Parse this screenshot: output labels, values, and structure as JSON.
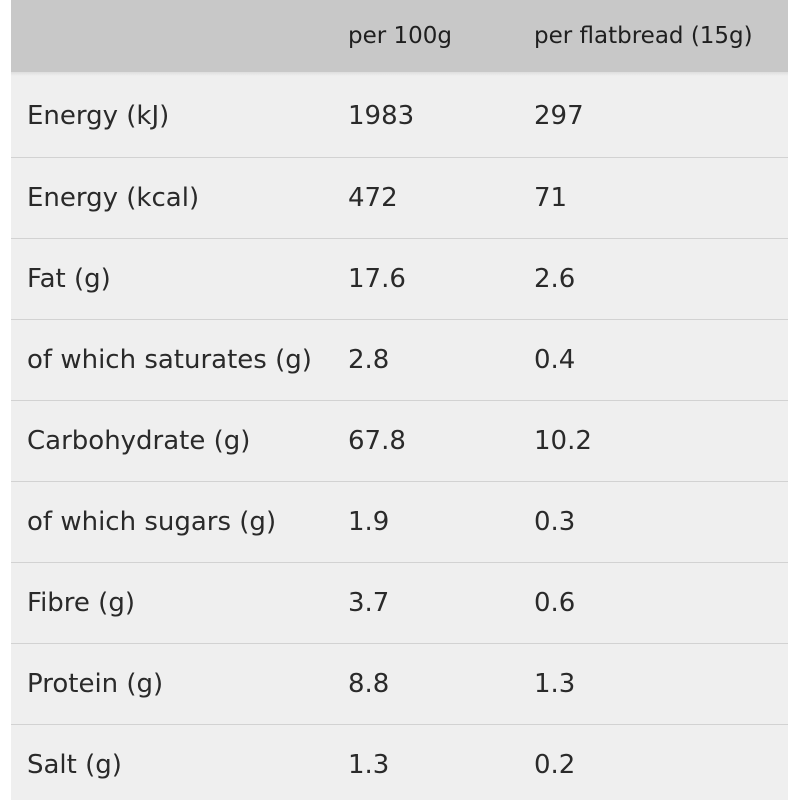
{
  "table": {
    "headers": [
      "",
      "per 100g",
      "per flatbread (15g)"
    ],
    "rows": [
      {
        "label": "Energy (kJ)",
        "per100": "1983",
        "perServing": "297"
      },
      {
        "label": "Energy (kcal)",
        "per100": "472",
        "perServing": "71"
      },
      {
        "label": "Fat (g)",
        "per100": "17.6",
        "perServing": "2.6"
      },
      {
        "label": "of which saturates (g)",
        "per100": "2.8",
        "perServing": "0.4"
      },
      {
        "label": "Carbohydrate (g)",
        "per100": "67.8",
        "perServing": "10.2"
      },
      {
        "label": "of which sugars (g)",
        "per100": "1.9",
        "perServing": "0.3"
      },
      {
        "label": "Fibre (g)",
        "per100": "3.7",
        "perServing": "0.6"
      },
      {
        "label": "Protein (g)",
        "per100": "8.8",
        "perServing": "1.3"
      },
      {
        "label": "Salt (g)",
        "per100": "1.3",
        "perServing": "0.2"
      }
    ]
  },
  "colors": {
    "header_bg": "#c8c8c8",
    "body_bg": "#efefef",
    "divider": "#d2d2d2",
    "text": "#2a2a2a"
  }
}
